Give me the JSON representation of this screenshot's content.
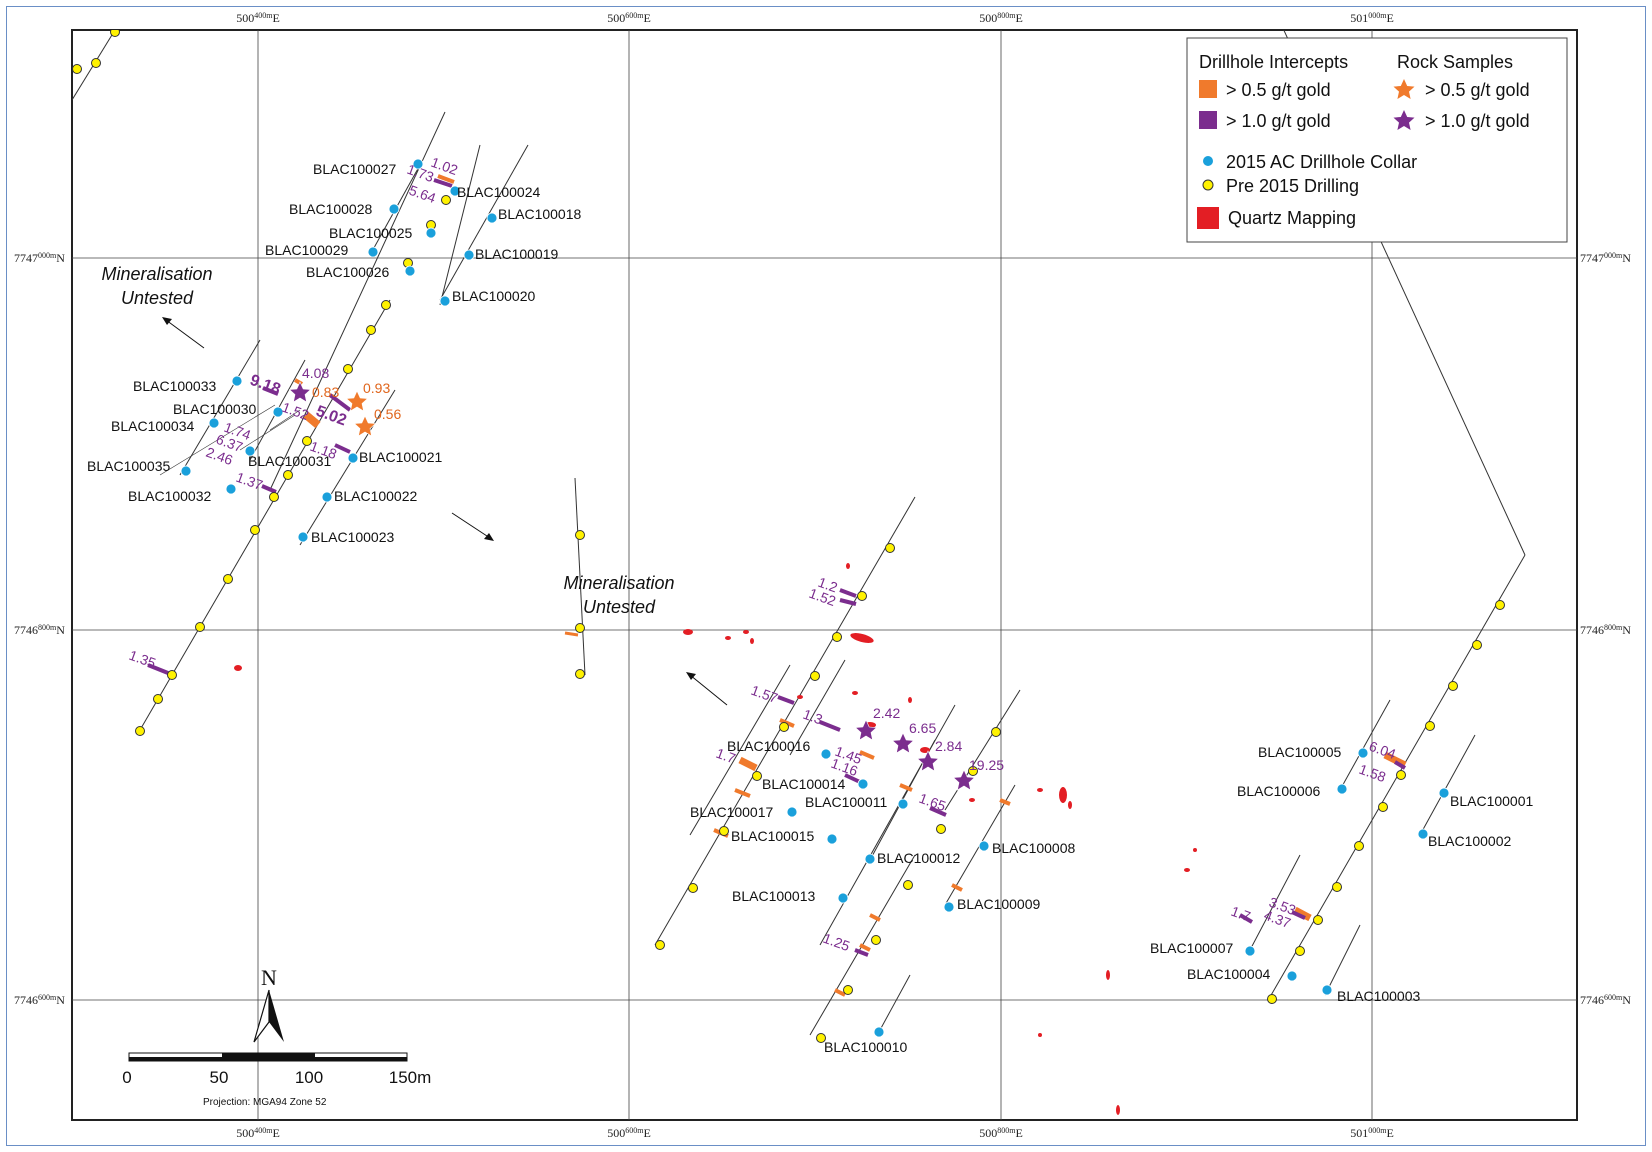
{
  "grid": {
    "eastings": [
      {
        "main": "500",
        "sup": "400m",
        "suffix": "E"
      },
      {
        "main": "500",
        "sup": "600m",
        "suffix": "E"
      },
      {
        "main": "500",
        "sup": "800m",
        "suffix": "E"
      },
      {
        "main": "501",
        "sup": "000m",
        "suffix": "E"
      }
    ],
    "northings": [
      {
        "main": "7747",
        "sup": "000m",
        "suffix": "N"
      },
      {
        "main": "7746",
        "sup": "800m",
        "suffix": "N"
      },
      {
        "main": "7746",
        "sup": "600m",
        "suffix": "N"
      }
    ]
  },
  "legend": {
    "intercepts_title": "Drillhole Intercepts",
    "rock_title": "Rock Samples",
    "i05": "> 0.5 g/t gold",
    "i10": "> 1.0 g/t gold",
    "r05": "> 0.5 g/t gold",
    "r10": "> 1.0 g/t gold",
    "collar_2015": "2015 AC Drillhole Collar",
    "pre2015": "Pre 2015 Drilling",
    "quartz": "Quartz Mapping",
    "colors": {
      "orange": "#f07a2c",
      "purple": "#7b2d8e",
      "blue": "#1aa0db",
      "yellow": "#fff200",
      "red": "#e31e24"
    }
  },
  "annotations": {
    "mineralisation_line1": "Mineralisation",
    "mineralisation_line2": "Untested"
  },
  "scale": {
    "ticks": [
      "0",
      "50",
      "100",
      "150m"
    ],
    "north": "N",
    "projection": "Projection: MGA94 Zone 52"
  },
  "holes": [
    {
      "id": "BLAC100027"
    },
    {
      "id": "BLAC100024"
    },
    {
      "id": "BLAC100028"
    },
    {
      "id": "BLAC100018"
    },
    {
      "id": "BLAC100025"
    },
    {
      "id": "BLAC100029"
    },
    {
      "id": "BLAC100019"
    },
    {
      "id": "BLAC100026"
    },
    {
      "id": "BLAC100020"
    },
    {
      "id": "BLAC100033"
    },
    {
      "id": "BLAC100030"
    },
    {
      "id": "BLAC100034"
    },
    {
      "id": "BLAC100021"
    },
    {
      "id": "BLAC100031"
    },
    {
      "id": "BLAC100035"
    },
    {
      "id": "BLAC100022"
    },
    {
      "id": "BLAC100032"
    },
    {
      "id": "BLAC100023"
    },
    {
      "id": "BLAC100016"
    },
    {
      "id": "BLAC100014"
    },
    {
      "id": "BLAC100011"
    },
    {
      "id": "BLAC100017"
    },
    {
      "id": "BLAC100015"
    },
    {
      "id": "BLAC100012"
    },
    {
      "id": "BLAC100008"
    },
    {
      "id": "BLAC100013"
    },
    {
      "id": "BLAC100009"
    },
    {
      "id": "BLAC100010"
    },
    {
      "id": "BLAC100005"
    },
    {
      "id": "BLAC100006"
    },
    {
      "id": "BLAC100001"
    },
    {
      "id": "BLAC100002"
    },
    {
      "id": "BLAC100007"
    },
    {
      "id": "BLAC100004"
    },
    {
      "id": "BLAC100003"
    }
  ],
  "intercepts": [
    {
      "value": "1.02",
      "color": "purple"
    },
    {
      "value": "1.73",
      "color": "purple"
    },
    {
      "value": "5.64",
      "color": "purple"
    },
    {
      "value": "9.18",
      "color": "purple"
    },
    {
      "value": "4.08",
      "color": "purple"
    },
    {
      "value": "0.83",
      "color": "orange"
    },
    {
      "value": "5.02",
      "color": "purple"
    },
    {
      "value": "1.52",
      "color": "purple"
    },
    {
      "value": "1.74",
      "color": "purple"
    },
    {
      "value": "6.37",
      "color": "purple"
    },
    {
      "value": "2.46",
      "color": "purple"
    },
    {
      "value": "1.18",
      "color": "purple"
    },
    {
      "value": "1.37",
      "color": "purple"
    },
    {
      "value": "1.35",
      "color": "purple"
    },
    {
      "value": "1.2",
      "color": "purple"
    },
    {
      "value": "1.52",
      "color": "purple"
    },
    {
      "value": "1.57",
      "color": "purple"
    },
    {
      "value": "1.3",
      "color": "purple"
    },
    {
      "value": "1.7",
      "color": "purple"
    },
    {
      "value": "1.45",
      "color": "purple"
    },
    {
      "value": "1.16",
      "color": "purple"
    },
    {
      "value": "1.65",
      "color": "purple"
    },
    {
      "value": "1.25",
      "color": "purple"
    },
    {
      "value": "6.04",
      "color": "purple"
    },
    {
      "value": "1.58",
      "color": "purple"
    },
    {
      "value": "3.53",
      "color": "purple"
    },
    {
      "value": "4.37",
      "color": "purple"
    },
    {
      "value": "1.7",
      "color": "purple"
    }
  ],
  "rock_samples": [
    {
      "value": "0.93",
      "color": "orange"
    },
    {
      "value": "0.56",
      "color": "orange"
    },
    {
      "value": "2.42",
      "color": "purple"
    },
    {
      "value": "6.65",
      "color": "purple"
    },
    {
      "value": "2.84",
      "color": "purple"
    },
    {
      "value": "19.25",
      "color": "purple"
    }
  ]
}
